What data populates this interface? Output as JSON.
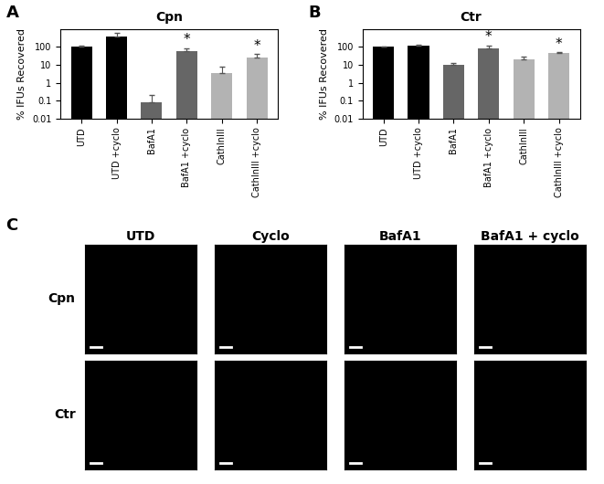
{
  "chart_data": [
    {
      "type": "bar",
      "panel_label": "A",
      "title": "Cpn",
      "y_label": "% IFUs Recovered",
      "categories": [
        "UTD",
        "UTD +cyclo",
        "BafA1",
        "BafA1 +cyclo",
        "CathInIII",
        "CathInIII +cyclo"
      ],
      "values": [
        100,
        400,
        0.08,
        60,
        3.5,
        25
      ],
      "errors": [
        20,
        200,
        0.12,
        25,
        4,
        15
      ],
      "colors": [
        "#000000",
        "#000000",
        "#666666",
        "#666666",
        "#b3b3b3",
        "#b3b3b3"
      ],
      "log": "y",
      "ylim": [
        0.01,
        1000
      ],
      "yticks": [
        0.01,
        0.1,
        1,
        10,
        100
      ],
      "annotations": [
        {
          "category": "BafA1 +cyclo",
          "text": "*"
        },
        {
          "category": "CathInIII +cyclo",
          "text": "*"
        }
      ]
    },
    {
      "type": "bar",
      "panel_label": "B",
      "title": "Ctr",
      "y_label": "% IFUs Recovered",
      "categories": [
        "UTD",
        "UTD +cyclo",
        "BafA1",
        "BafA1 +cyclo",
        "CathInIII",
        "CathInIII +cyclo"
      ],
      "values": [
        100,
        120,
        10,
        80,
        20,
        45
      ],
      "errors": [
        10,
        20,
        2,
        40,
        10,
        5
      ],
      "colors": [
        "#000000",
        "#000000",
        "#666666",
        "#666666",
        "#b3b3b3",
        "#b3b3b3"
      ],
      "log": "y",
      "ylim": [
        0.01,
        1000
      ],
      "yticks": [
        0.01,
        0.1,
        1,
        10,
        100
      ],
      "annotations": [
        {
          "category": "BafA1 +cyclo",
          "text": "*"
        },
        {
          "category": "CathInIII +cyclo",
          "text": "*"
        }
      ]
    }
  ],
  "image_grid": {
    "panel_label": "C",
    "columns": [
      "UTD",
      "Cyclo",
      "BafA1",
      "BafA1 + cyclo"
    ],
    "rows": [
      "Cpn",
      "Ctr"
    ]
  }
}
